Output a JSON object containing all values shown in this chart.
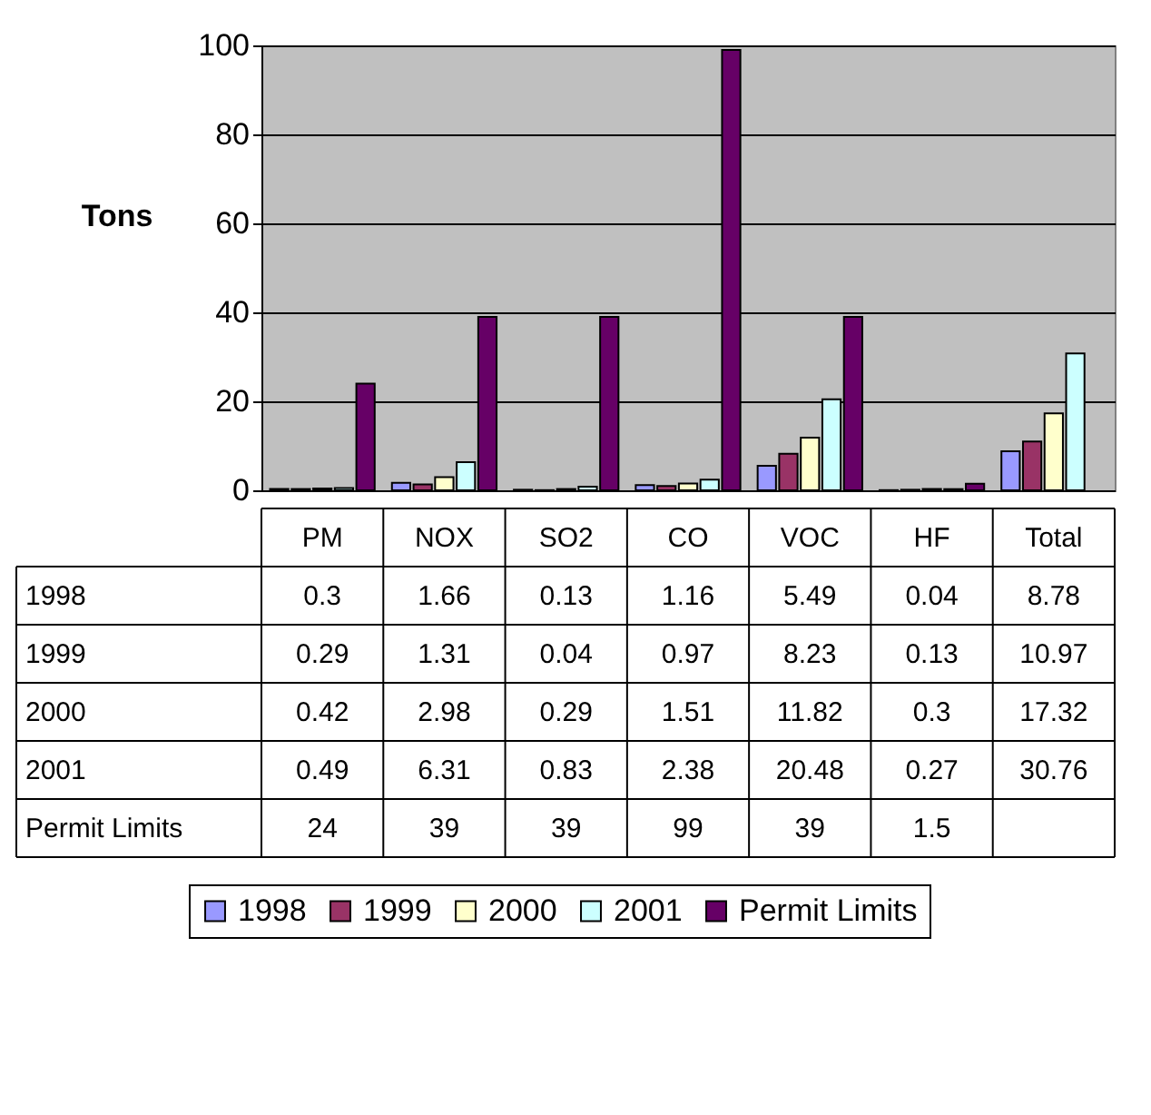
{
  "chart_data": {
    "type": "bar",
    "ylabel": "Tons",
    "categories": [
      "PM",
      "NOX",
      "SO2",
      "CO",
      "VOC",
      "HF",
      "Total"
    ],
    "series": [
      {
        "name": "1998",
        "color": "#9999ff",
        "values": [
          0.3,
          1.66,
          0.13,
          1.16,
          5.49,
          0.04,
          8.78
        ]
      },
      {
        "name": "1999",
        "color": "#993366",
        "values": [
          0.29,
          1.31,
          0.04,
          0.97,
          8.23,
          0.13,
          10.97
        ]
      },
      {
        "name": "2000",
        "color": "#ffffcc",
        "values": [
          0.42,
          2.98,
          0.29,
          1.51,
          11.82,
          0.3,
          17.32
        ]
      },
      {
        "name": "2001",
        "color": "#ccffff",
        "values": [
          0.49,
          6.31,
          0.83,
          2.38,
          20.48,
          0.27,
          30.76
        ]
      },
      {
        "name": "Permit Limits",
        "color": "#660066",
        "values": [
          24,
          39,
          39,
          99,
          39,
          1.5,
          null
        ]
      }
    ],
    "ylim": [
      0,
      100
    ],
    "yticks": [
      0,
      20,
      40,
      60,
      80,
      100
    ],
    "grid": "y",
    "legend": "bottom",
    "data_labels": true
  }
}
